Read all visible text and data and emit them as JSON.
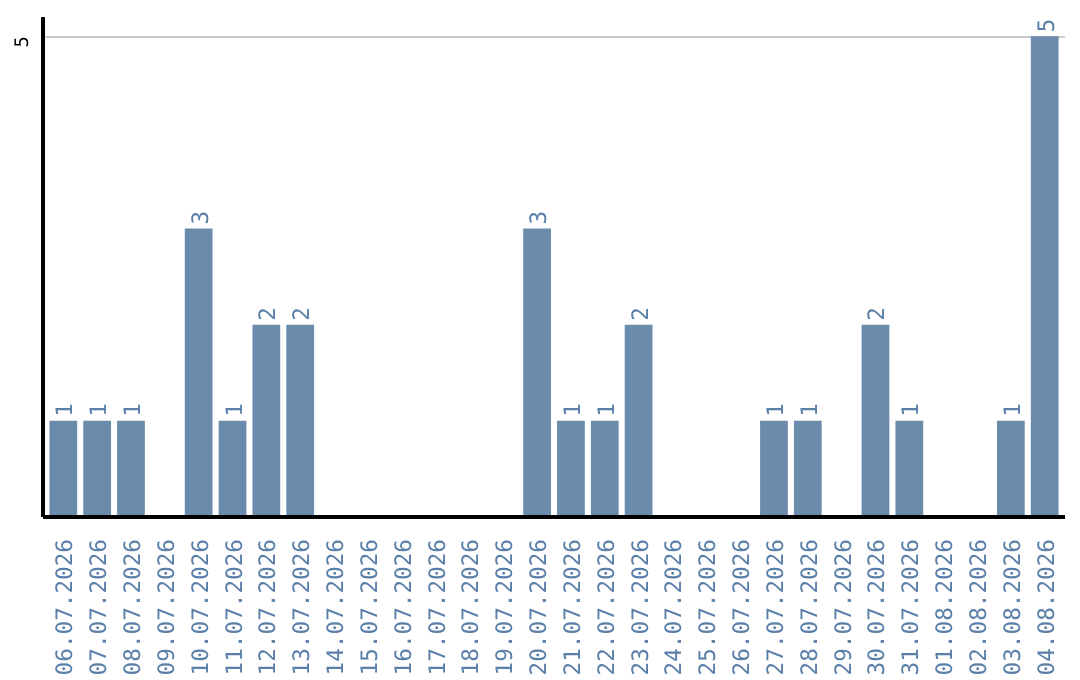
{
  "chart_data": {
    "type": "bar",
    "categories": [
      "06.07.2026",
      "07.07.2026",
      "08.07.2026",
      "09.07.2026",
      "10.07.2026",
      "11.07.2026",
      "12.07.2026",
      "13.07.2026",
      "14.07.2026",
      "15.07.2026",
      "16.07.2026",
      "17.07.2026",
      "18.07.2026",
      "19.07.2026",
      "20.07.2026",
      "21.07.2026",
      "22.07.2026",
      "23.07.2026",
      "24.07.2026",
      "25.07.2026",
      "26.07.2026",
      "27.07.2026",
      "28.07.2026",
      "29.07.2026",
      "30.07.2026",
      "31.07.2026",
      "01.08.2026",
      "02.08.2026",
      "03.08.2026",
      "04.08.2026"
    ],
    "values": [
      1,
      1,
      1,
      0,
      3,
      1,
      2,
      2,
      0,
      0,
      0,
      0,
      0,
      0,
      3,
      1,
      1,
      2,
      0,
      0,
      0,
      1,
      1,
      0,
      2,
      1,
      0,
      0,
      1,
      5
    ],
    "value_labels": [
      "1",
      "1",
      "1",
      null,
      "3",
      "1",
      "2",
      "2",
      null,
      null,
      null,
      null,
      null,
      null,
      "3",
      "1",
      "1",
      "2",
      null,
      null,
      null,
      "1",
      "1",
      null,
      "2",
      "1",
      null,
      null,
      "1",
      "5"
    ],
    "color": "#6a8bac",
    "ylim": [
      0,
      5.2
    ],
    "yticks": [
      5
    ],
    "grid": "y"
  }
}
